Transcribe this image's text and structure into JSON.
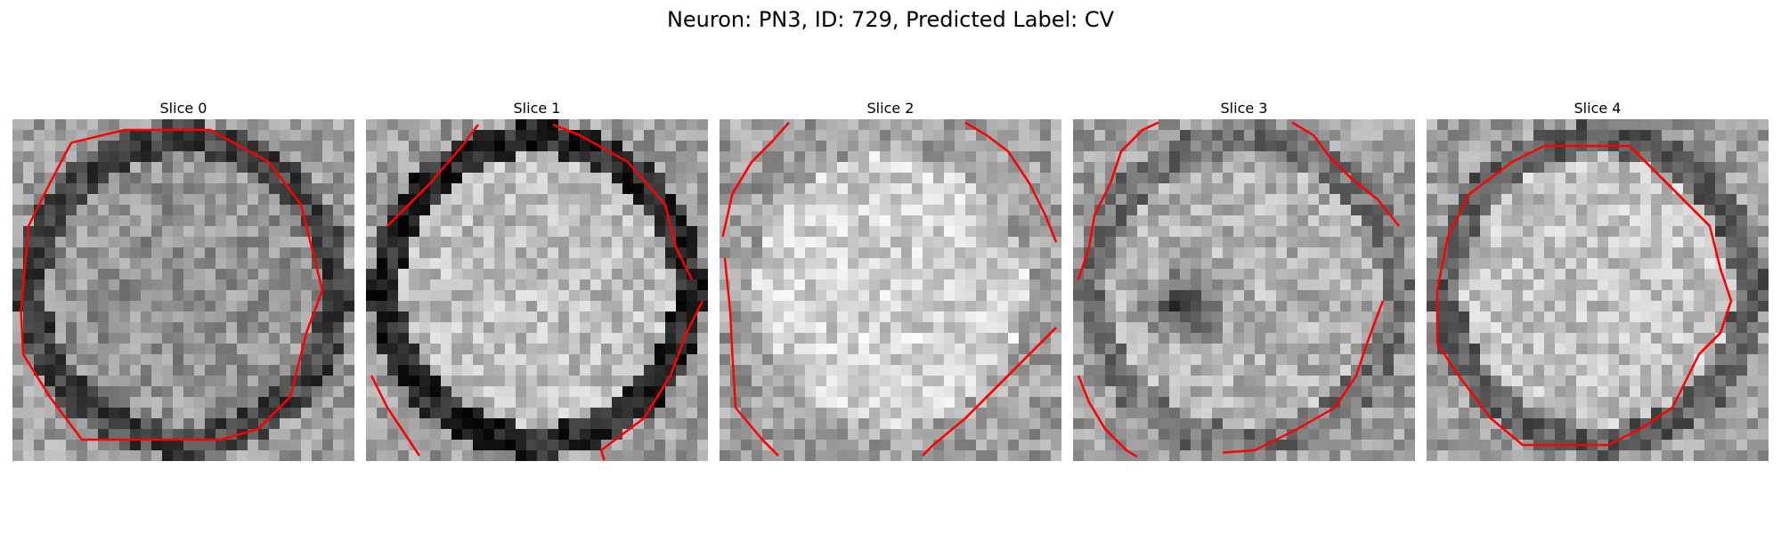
{
  "figure": {
    "title": "Neuron: PN3, ID: 729, Predicted Label: CV"
  },
  "colors": {
    "contour": "#ff0000",
    "background": "#ffffff"
  },
  "panels": [
    {
      "title": "Slice 0",
      "seed": 11,
      "dark_blob": false,
      "ring_strength": 0.45,
      "brightness": 0.58
    },
    {
      "title": "Slice 1",
      "seed": 23,
      "dark_blob": false,
      "ring_strength": 0.85,
      "brightness": 0.74
    },
    {
      "title": "Slice 2",
      "seed": 37,
      "dark_blob": false,
      "ring_strength": 0.25,
      "brightness": 0.82
    },
    {
      "title": "Slice 3",
      "seed": 41,
      "dark_blob": true,
      "ring_strength": 0.35,
      "brightness": 0.7
    },
    {
      "title": "Slice 4",
      "seed": 53,
      "dark_blob": false,
      "ring_strength": 0.55,
      "brightness": 0.76
    }
  ]
}
